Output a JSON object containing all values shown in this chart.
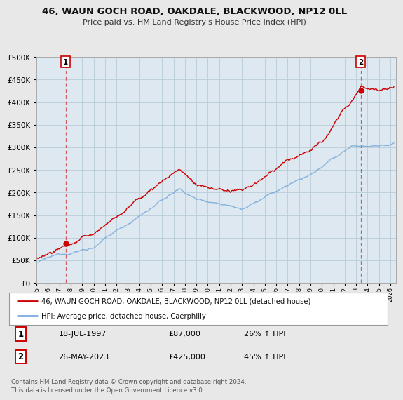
{
  "title": "46, WAUN GOCH ROAD, OAKDALE, BLACKWOOD, NP12 0LL",
  "subtitle": "Price paid vs. HM Land Registry's House Price Index (HPI)",
  "legend_line1": "46, WAUN GOCH ROAD, OAKDALE, BLACKWOOD, NP12 0LL (detached house)",
  "legend_line2": "HPI: Average price, detached house, Caerphilly",
  "footnote": "Contains HM Land Registry data © Crown copyright and database right 2024.\nThis data is licensed under the Open Government Licence v3.0.",
  "sale1_date": "18-JUL-1997",
  "sale1_price": "£87,000",
  "sale1_hpi": "26% ↑ HPI",
  "sale2_date": "26-MAY-2023",
  "sale2_price": "£425,000",
  "sale2_hpi": "45% ↑ HPI",
  "red_color": "#cc0000",
  "blue_color": "#7aacdc",
  "background_color": "#e8e8e8",
  "plot_bg_color": "#dde8f0",
  "grid_color": "#b8ccd8",
  "ylim": [
    0,
    500000
  ],
  "xlim_start": 1995.0,
  "xlim_end": 2026.5,
  "sale1_x": 1997.55,
  "sale1_y": 87000,
  "sale2_x": 2023.4,
  "sale2_y": 425000
}
